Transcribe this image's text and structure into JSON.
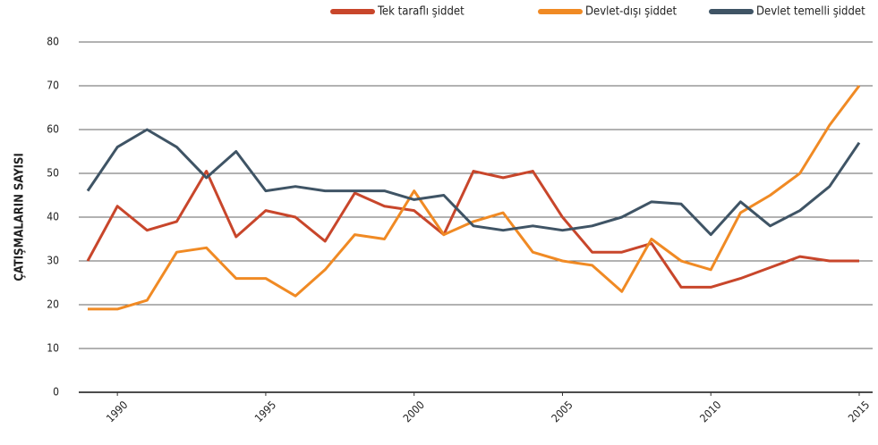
{
  "chart_data": {
    "type": "line",
    "y_label": "ÇATIŞMALARIN SAYISI",
    "x": [
      1989,
      1990,
      1991,
      1992,
      1993,
      1994,
      1995,
      1996,
      1997,
      1998,
      1999,
      2000,
      2001,
      2002,
      2003,
      2004,
      2005,
      2006,
      2007,
      2008,
      2009,
      2010,
      2011,
      2012,
      2013,
      2014,
      2015
    ],
    "series": [
      {
        "name": "Tek taraflı şiddet",
        "color": "#c8462b",
        "values": [
          30,
          42.5,
          37,
          39,
          50.5,
          35.5,
          41.5,
          40,
          34.5,
          45.5,
          42.5,
          41.5,
          36,
          50.5,
          49,
          50.5,
          40,
          32,
          32,
          34,
          24,
          24,
          26,
          28.5,
          31,
          30,
          30
        ]
      },
      {
        "name": "Devlet-dışı şiddet",
        "color": "#f08a24",
        "values": [
          19,
          19,
          21,
          32,
          33,
          26,
          26,
          22,
          28,
          36,
          35,
          46,
          36,
          39,
          41,
          32,
          30,
          29,
          23,
          35,
          30,
          28,
          41,
          45,
          50,
          61,
          70
        ]
      },
      {
        "name": "Devlet temelli şiddet",
        "color": "#3f5465",
        "values": [
          46,
          56,
          60,
          56,
          49,
          55,
          46,
          47,
          46,
          46,
          46,
          44,
          45,
          38,
          37,
          38,
          37,
          38,
          40,
          43.5,
          43,
          36,
          43.5,
          38,
          41.5,
          47,
          57
        ]
      }
    ],
    "xlim": [
      1989,
      2015
    ],
    "xticks": [
      1990,
      1995,
      2000,
      2005,
      2010,
      2015
    ],
    "ylim": [
      0,
      80
    ],
    "yticks": [
      0,
      10,
      20,
      30,
      40,
      50,
      60,
      70,
      80
    ],
    "grid": true,
    "legend": "top-right"
  }
}
